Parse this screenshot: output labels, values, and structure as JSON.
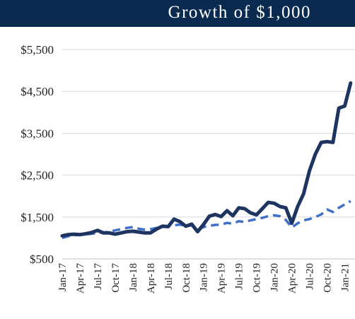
{
  "title": "Growth of $1,000",
  "colors": {
    "header_bg": "#0b2a4f",
    "primary_series": "#1e3461",
    "benchmark_series": "#3f6fc8",
    "grid": "#d9d9d9"
  },
  "chart_data": {
    "type": "line",
    "title": "Growth of $1,000",
    "xlabel": "",
    "ylabel": "",
    "ylim": [
      500,
      5500
    ],
    "y_ticks": [
      500,
      1500,
      2500,
      3500,
      4500,
      5500
    ],
    "y_tick_labels": [
      "$500",
      "$1,500",
      "$2,500",
      "$3,500",
      "$4,500",
      "$5,500"
    ],
    "x_tick_labels": [
      "Jan-17",
      "Apr-17",
      "Jul-17",
      "Oct-17",
      "Jan-18",
      "Apr-18",
      "Jul-18",
      "Oct-18",
      "Jan-19",
      "Apr-19",
      "Jul-19",
      "Oct-19",
      "Jan-20",
      "Apr-20",
      "Jul-20",
      "Oct-20",
      "Jan-21"
    ],
    "grid": "horizontal",
    "legend": "none",
    "x": [
      "Jan-17",
      "Feb-17",
      "Mar-17",
      "Apr-17",
      "May-17",
      "Jun-17",
      "Jul-17",
      "Aug-17",
      "Sep-17",
      "Oct-17",
      "Nov-17",
      "Dec-17",
      "Jan-18",
      "Feb-18",
      "Mar-18",
      "Apr-18",
      "May-18",
      "Jun-18",
      "Jul-18",
      "Aug-18",
      "Sep-18",
      "Oct-18",
      "Nov-18",
      "Dec-18",
      "Jan-19",
      "Feb-19",
      "Mar-19",
      "Apr-19",
      "May-19",
      "Jun-19",
      "Jul-19",
      "Aug-19",
      "Sep-19",
      "Oct-19",
      "Nov-19",
      "Dec-19",
      "Jan-20",
      "Feb-20",
      "Mar-20",
      "Apr-20",
      "May-20",
      "Jun-20",
      "Jul-20",
      "Aug-20",
      "Sep-20",
      "Oct-20",
      "Nov-20",
      "Dec-20",
      "Jan-21",
      "Feb-21"
    ],
    "series": [
      {
        "style": "solid",
        "values": [
          1050,
          1080,
          1090,
          1080,
          1100,
          1130,
          1180,
          1120,
          1120,
          1090,
          1120,
          1150,
          1160,
          1140,
          1120,
          1120,
          1210,
          1280,
          1270,
          1450,
          1390,
          1280,
          1330,
          1150,
          1320,
          1520,
          1560,
          1510,
          1650,
          1530,
          1720,
          1700,
          1600,
          1550,
          1700,
          1850,
          1830,
          1750,
          1720,
          1350,
          1750,
          2050,
          2600,
          3000,
          3280,
          3300,
          3280,
          4100,
          4150,
          4700
        ]
      },
      {
        "style": "dashed",
        "values": [
          1000,
          1040,
          1060,
          1080,
          1090,
          1100,
          1120,
          1130,
          1150,
          1180,
          1210,
          1240,
          1260,
          1220,
          1200,
          1210,
          1240,
          1260,
          1280,
          1300,
          1320,
          1280,
          1300,
          1200,
          1260,
          1290,
          1310,
          1320,
          1360,
          1340,
          1400,
          1380,
          1420,
          1450,
          1480,
          1520,
          1540,
          1520,
          1430,
          1250,
          1350,
          1420,
          1450,
          1500,
          1560,
          1680,
          1620,
          1720,
          1800,
          1880
        ]
      }
    ]
  }
}
